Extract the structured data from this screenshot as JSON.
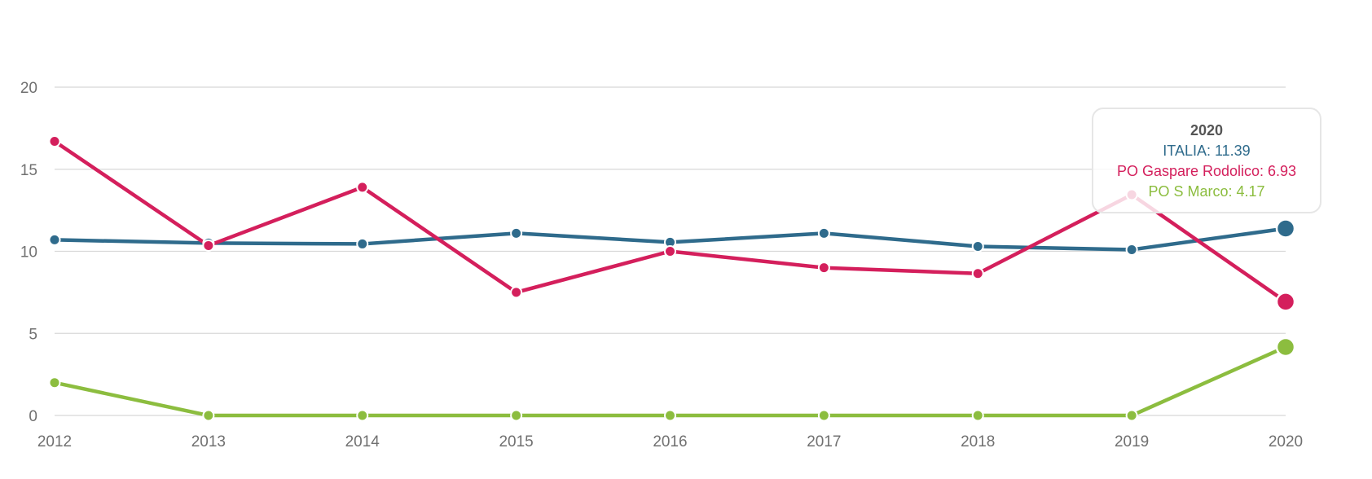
{
  "chart_data": {
    "type": "line",
    "title": "",
    "xlabel": "",
    "ylabel": "",
    "x": [
      "2012",
      "2013",
      "2014",
      "2015",
      "2016",
      "2017",
      "2018",
      "2019",
      "2020"
    ],
    "ylim": [
      0,
      20
    ],
    "yticks": [
      "0",
      "5",
      "10",
      "15",
      "20"
    ],
    "grid": true,
    "series": [
      {
        "name": "ITALIA",
        "color": "#2f6b8c",
        "values": [
          10.7,
          10.5,
          10.45,
          11.1,
          10.55,
          11.1,
          10.3,
          10.1,
          11.39
        ]
      },
      {
        "name": "PO Gaspare Rodolico",
        "color": "#d41f5c",
        "values": [
          16.7,
          10.35,
          13.9,
          7.5,
          10.0,
          9.0,
          8.65,
          13.45,
          6.93
        ]
      },
      {
        "name": "PO S Marco",
        "color": "#8cbd3f",
        "values": [
          2.0,
          0,
          0,
          0,
          0,
          0,
          0,
          0,
          4.17
        ]
      }
    ],
    "tooltip": {
      "title": "2020",
      "rows": [
        {
          "label": "ITALIA: 11.39",
          "color": "#2f6b8c"
        },
        {
          "label": "PO Gaspare Rodolico: 6.93",
          "color": "#d41f5c"
        },
        {
          "label": "PO S Marco: 4.17",
          "color": "#8cbd3f"
        }
      ]
    }
  }
}
